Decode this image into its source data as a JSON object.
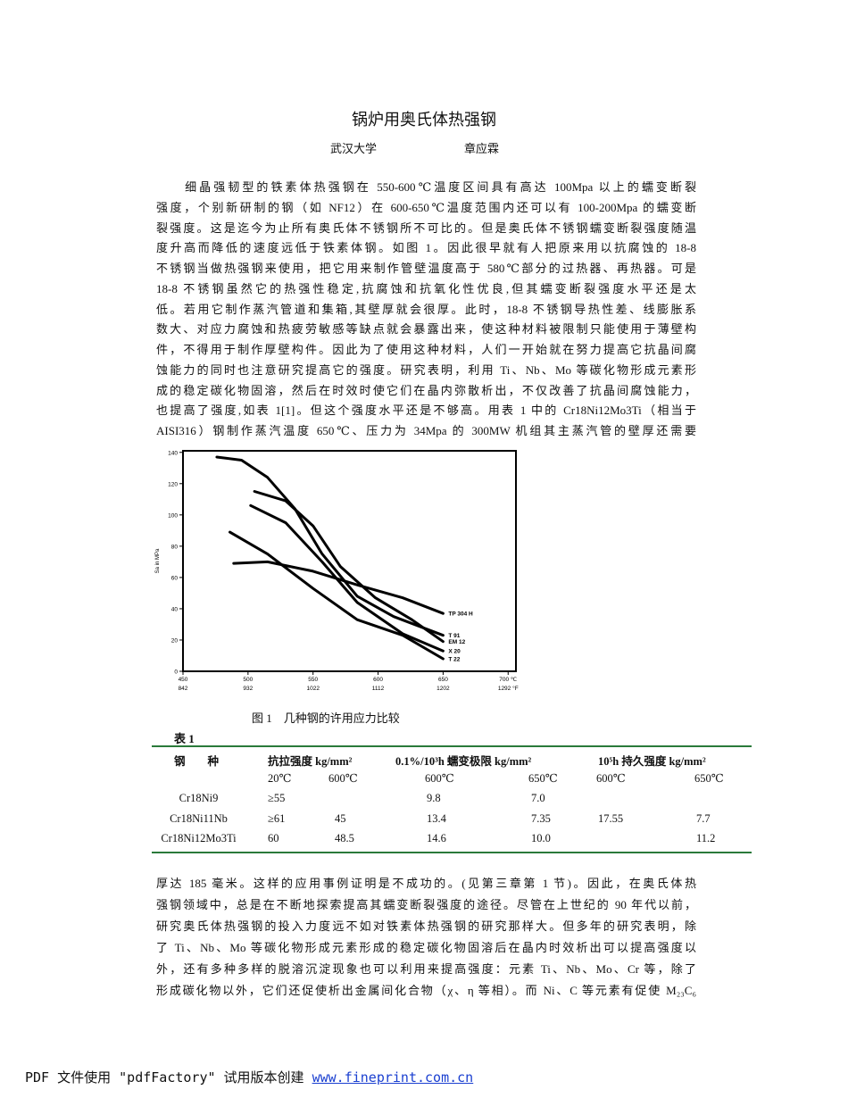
{
  "title": "锅炉用奥氏体热强钢",
  "authors": [
    "武汉大学",
    "章应霖"
  ],
  "paragraph_1": [
    "　　细晶强韧型的铁素体热强钢在 550-600℃温度区间具有高达 100Mpa 以上的蠕变断裂",
    "强度，个别新研制的钢（如 NF12）在 600-650℃温度范围内还可以有 100-200Mpa 的蠕变断",
    "裂强度。这是迄今为止所有奥氏体不锈钢所不可比的。但是奥氏体不锈钢蠕变断裂强度随温",
    "度升高而降低的速度远低于铁素体钢。如图 1。因此很早就有人把原来用以抗腐蚀的 18-8",
    "不锈钢当做热强钢来使用，把它用来制作管壁温度高于 580℃部分的过热器、再热器。可是",
    "18-8 不锈钢虽然它的热强性稳定,抗腐蚀和抗氧化性优良,但其蠕变断裂强度水平还是太",
    "低。若用它制作蒸汽管道和集箱,其壁厚就会很厚。此时，18-8 不锈钢导热性差、线膨胀系",
    "数大、对应力腐蚀和热疲劳敏感等缺点就会暴露出来，使这种材料被限制只能使用于薄壁构",
    "件，不得用于制作厚壁构件。因此为了使用这种材料，人们一开始就在努力提高它抗晶间腐",
    "蚀能力的同时也注意研究提高它的强度。研究表明，利用 Ti、Nb、Mo 等碳化物形成元素形",
    "成的稳定碳化物固溶，然后在时效时使它们在晶内弥散析出，不仅改善了抗晶间腐蚀能力，",
    "也提高了强度,如表 1[1]。但这个强度水平还是不够高。用表 1 中的 Cr18Ni12Mo3Ti（相当于",
    "AISI316）钢制作蒸汽温度 650℃、压力为 34Mpa 的 300MW 机组其主蒸汽管的壁厚还需要"
  ],
  "chart_data": {
    "type": "line",
    "y_label": "Sa in MPa",
    "xlim": [
      450,
      706
    ],
    "ylim": [
      0,
      141
    ],
    "xticks": [
      450,
      500,
      550,
      600,
      650,
      {
        "value": 700,
        "label": "700 ℃"
      }
    ],
    "x2ticks": [
      {
        "value": 450,
        "label": "842"
      },
      {
        "value": 500,
        "label": "932"
      },
      {
        "value": 550,
        "label": "1022"
      },
      {
        "value": 600,
        "label": "1112"
      },
      {
        "value": 650,
        "label": "1202"
      },
      {
        "value": 700,
        "label": "1292 °F"
      }
    ],
    "yticks": [
      0,
      20,
      40,
      60,
      80,
      100,
      120,
      140
    ],
    "series": [
      {
        "name": "TP 304 H",
        "color": "#000000",
        "x": [
          489,
          515,
          550,
          585,
          619,
          650
        ],
        "values": [
          69,
          70,
          64,
          55,
          47,
          37
        ]
      },
      {
        "name": "T 91",
        "color": "#000000",
        "x": [
          476,
          495,
          515,
          536,
          557,
          584,
          612,
          650
        ],
        "values": [
          137,
          135,
          124,
          104,
          75,
          48,
          35,
          23
        ]
      },
      {
        "name": "EM 12",
        "color": "#000000",
        "x": [
          505,
          529,
          550,
          571,
          598,
          626,
          650
        ],
        "values": [
          115,
          109,
          93,
          67,
          47,
          33,
          19
        ]
      },
      {
        "name": "X 20",
        "color": "#000000",
        "x": [
          502,
          529,
          557,
          584,
          619,
          650
        ],
        "values": [
          106,
          95,
          70,
          44,
          24,
          13
        ]
      },
      {
        "name": "T 22",
        "color": "#000000",
        "x": [
          486,
          515,
          550,
          584,
          619,
          650
        ],
        "values": [
          89,
          75,
          53,
          33,
          23,
          8
        ]
      }
    ]
  },
  "figure_caption": "图 1　几种钢的许用应力比较",
  "table": {
    "label": "表 1",
    "header": [
      "钢　　种",
      "抗拉强度 kg/mm²",
      "0.1%/10³h 蠕变极限 kg/mm²",
      "10⁵h 持久强度 kg/mm²"
    ],
    "subheader": [
      "20℃",
      "600℃",
      "600℃",
      "650℃",
      "600℃",
      "650℃"
    ],
    "rows": [
      [
        "Cr18Ni9",
        "≥55",
        null,
        "9.8",
        "7.0",
        null,
        null
      ],
      [
        "Cr18Ni11Nb",
        "≥61",
        "45",
        "13.4",
        "7.35",
        "17.55",
        "7.7"
      ],
      [
        "Cr18Ni12Mo3Ti",
        "60",
        "48.5",
        "14.6",
        "10.0",
        null,
        "11.2"
      ]
    ]
  },
  "paragraph_2": [
    "厚达 185 毫米。这样的应用事例证明是不成功的。(见第三章第 1 节)。因此，在奥氏体热",
    "强钢领域中，总是在不断地探索提高其蠕变断裂强度的途径。尽管在上世纪的 90 年代以前，",
    "研究奥氏体热强钢的投入力度远不如对铁素体热强钢的研究那样大。但多年的研究表明，除",
    "了 Ti、Nb、Mo 等碳化物形成元素形成的稳定碳化物固溶后在晶内时效析出可以提高强度以",
    "外，还有多种多样的脱溶沉淀现象也可以利用来提高强度：元素 Ti、Nb、Mo、Cr 等，除了",
    "形成碳化物以外，它们还促使析出金属间化合物（χ、η 等相）。而 Ni、C 等元素有促使 M₂₃C₆"
  ],
  "footer": {
    "text": "PDF 文件使用 \"pdfFactory\" 试用版本创建",
    "link": "www.fineprint.com.cn"
  }
}
